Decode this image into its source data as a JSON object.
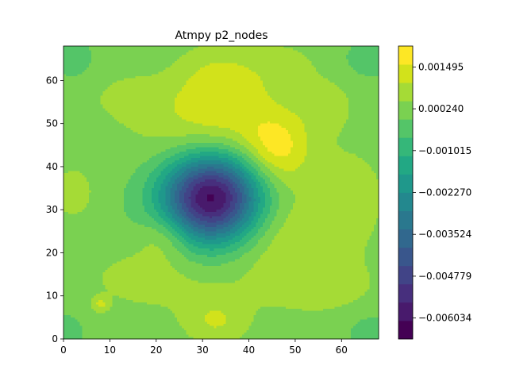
{
  "chart_data": {
    "type": "heatmap",
    "subtype": "filled-contour",
    "title": "Atmpy p2_nodes",
    "xlabel": "",
    "ylabel": "",
    "xlim": [
      0,
      68
    ],
    "ylim": [
      0,
      68
    ],
    "x_ticks": [
      "0",
      "10",
      "20",
      "30",
      "40",
      "50",
      "60"
    ],
    "y_ticks": [
      "0",
      "10",
      "20",
      "30",
      "40",
      "50",
      "60"
    ],
    "colorbar": {
      "range": [
        -0.006661,
        0.002122
      ],
      "tick_values": [
        0.001495,
        0.00024,
        -0.001015,
        -0.00227,
        -0.003524,
        -0.004779,
        -0.006034
      ],
      "tick_labels": [
        "0.001495",
        "0.000240",
        "−0.001015",
        "−0.002270",
        "−0.003524",
        "−0.004779",
        "−0.006034"
      ],
      "levels": 14,
      "colors": [
        "#440154",
        "#481a6c",
        "#472f7d",
        "#414487",
        "#39568c",
        "#31688e",
        "#2a788e",
        "#23888e",
        "#1f988b",
        "#22a884",
        "#35b779",
        "#54c568",
        "#7ad151",
        "#a5db36",
        "#d2e21b",
        "#fde725"
      ]
    },
    "background_color": "#5ec962",
    "field": {
      "grid_size": 69,
      "base": 0.0001,
      "features": [
        {
          "kind": "minimum",
          "x": 32,
          "y": 33,
          "sx": 7.5,
          "sy": 7.5,
          "amp": -0.0068
        },
        {
          "kind": "ridge",
          "x": 33,
          "y": 47,
          "sx": 11,
          "sy": 9,
          "amp": 0.0014
        },
        {
          "kind": "ridge",
          "x": 46,
          "y": 44,
          "sx": 5,
          "sy": 6,
          "amp": 0.0014
        },
        {
          "kind": "ridge",
          "x": 33,
          "y": 60,
          "sx": 6,
          "sy": 6,
          "amp": 0.0008
        },
        {
          "kind": "ridge",
          "x": 47,
          "y": 24,
          "sx": 10,
          "sy": 7,
          "amp": 0.0009
        },
        {
          "kind": "ridge",
          "x": 22,
          "y": 24,
          "sx": 4,
          "sy": 4,
          "amp": 0.0009
        },
        {
          "kind": "ridge",
          "x": 33,
          "y": 4,
          "sx": 5,
          "sy": 4,
          "amp": 0.0009
        },
        {
          "kind": "ridge",
          "x": 2,
          "y": 34,
          "sx": 3,
          "sy": 4,
          "amp": 0.0008
        },
        {
          "kind": "ridge",
          "x": 20,
          "y": 14,
          "sx": 12,
          "sy": 6,
          "amp": 0.0006
        },
        {
          "kind": "ridge",
          "x": 55,
          "y": 12,
          "sx": 10,
          "sy": 5,
          "amp": 0.0006
        },
        {
          "kind": "ridge",
          "x": 62,
          "y": 34,
          "sx": 6,
          "sy": 8,
          "amp": 0.0006
        },
        {
          "kind": "ridge",
          "x": 14,
          "y": 56,
          "sx": 6,
          "sy": 4,
          "amp": 0.0005
        },
        {
          "kind": "ridge",
          "x": 57,
          "y": 54,
          "sx": 4,
          "sy": 4,
          "amp": 0.0006
        },
        {
          "kind": "ridge",
          "x": 47,
          "y": 63,
          "sx": 7,
          "sy": 5,
          "amp": 0.0005
        },
        {
          "kind": "minimum",
          "x": 2,
          "y": 65,
          "sx": 3,
          "sy": 3,
          "amp": -0.0005
        },
        {
          "kind": "minimum",
          "x": 66,
          "y": 65,
          "sx": 4,
          "sy": 3,
          "amp": -0.0005
        },
        {
          "kind": "minimum",
          "x": 0,
          "y": 2,
          "sx": 3,
          "sy": 3,
          "amp": -0.0005
        },
        {
          "kind": "minimum",
          "x": 67,
          "y": 2,
          "sx": 4,
          "sy": 3,
          "amp": -0.0005
        },
        {
          "kind": "ridge",
          "x": 8,
          "y": 8,
          "sx": 1.2,
          "sy": 1.2,
          "amp": 0.0009
        }
      ]
    }
  }
}
